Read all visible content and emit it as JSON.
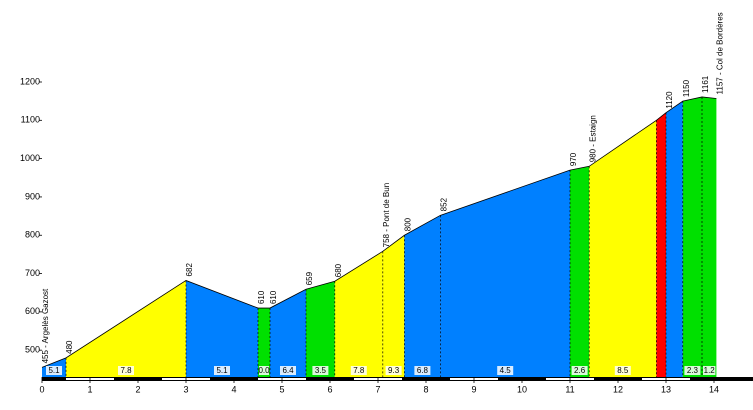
{
  "chart_data": {
    "type": "profile",
    "x": [
      0,
      0.5,
      3,
      4.5,
      4.75,
      5.5,
      6.1,
      7.1,
      7.55,
      8.3,
      11,
      11.4,
      12.8,
      13,
      13.35,
      13.75,
      14.05
    ],
    "values": [
      455,
      480,
      682,
      610,
      610,
      659,
      680,
      758,
      800,
      852,
      970,
      980,
      1100,
      1120,
      1150,
      1161,
      1157
    ],
    "value_labels": [
      "455 - Argelès Gazost",
      "480",
      "682",
      "610",
      "610",
      "659",
      "680",
      "758 - Pont de Bun",
      "800",
      "852",
      "970",
      "980 - Estaign",
      null,
      "1120",
      "1150",
      "1161",
      "1157 - Col de Bordères"
    ],
    "segment_colors": [
      "#0080ff",
      "#ffff00",
      "#0080ff",
      "#00e000",
      "#0080ff",
      "#00e000",
      "#ffff00",
      "#ffff00",
      "#0080ff",
      "#0080ff",
      "#00e000",
      "#ffff00",
      "#ff0000",
      "#0080ff",
      "#00e000",
      "#00e000"
    ],
    "segment_grades": [
      "5.1",
      "7.8",
      "5.1",
      "0.0",
      "6.4",
      "3.5",
      "7.8",
      "9.3",
      "6.8",
      "4.5",
      "2.6",
      "8.5",
      null,
      null,
      "2.3",
      "1.2"
    ],
    "xlim": [
      0,
      14.8
    ],
    "xticks": [
      0,
      1,
      2,
      3,
      4,
      5,
      6,
      7,
      8,
      9,
      10,
      11,
      12,
      13,
      14
    ],
    "ylim": [
      430,
      1200
    ],
    "yticks": [
      500,
      600,
      700,
      800,
      900,
      1000,
      1100,
      1200
    ]
  }
}
